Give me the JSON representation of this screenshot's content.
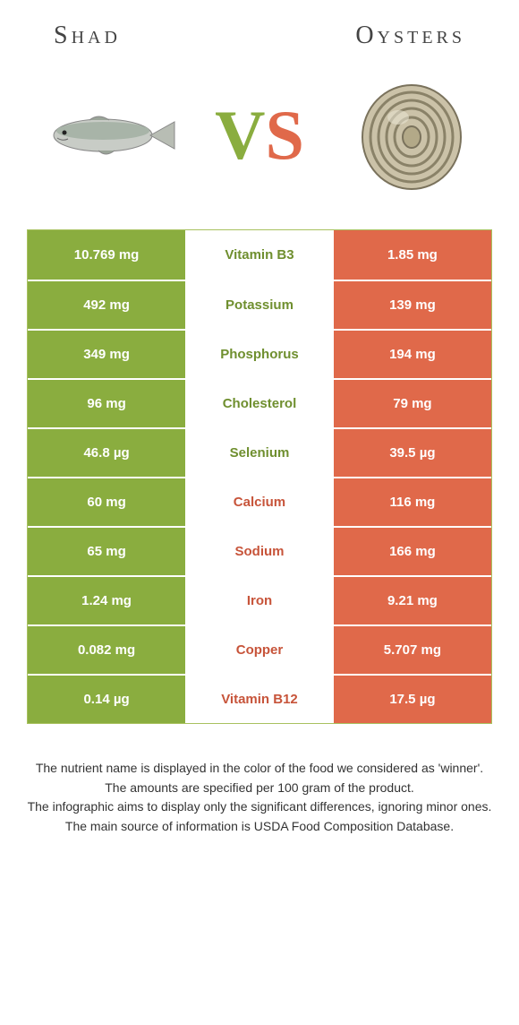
{
  "header": {
    "left_title": "Shad",
    "right_title": "Oysters"
  },
  "vs": {
    "v": "V",
    "s": "S"
  },
  "colors": {
    "left": "#8aad3f",
    "right": "#e0694a",
    "left_text": "#6f8f2f",
    "right_text": "#c7543a"
  },
  "rows": [
    {
      "left": "10.769 mg",
      "label": "Vitamin B3",
      "right": "1.85 mg",
      "winner": "left"
    },
    {
      "left": "492 mg",
      "label": "Potassium",
      "right": "139 mg",
      "winner": "left"
    },
    {
      "left": "349 mg",
      "label": "Phosphorus",
      "right": "194 mg",
      "winner": "left"
    },
    {
      "left": "96 mg",
      "label": "Cholesterol",
      "right": "79 mg",
      "winner": "left"
    },
    {
      "left": "46.8 µg",
      "label": "Selenium",
      "right": "39.5 µg",
      "winner": "left"
    },
    {
      "left": "60 mg",
      "label": "Calcium",
      "right": "116 mg",
      "winner": "right"
    },
    {
      "left": "65 mg",
      "label": "Sodium",
      "right": "166 mg",
      "winner": "right"
    },
    {
      "left": "1.24 mg",
      "label": "Iron",
      "right": "9.21 mg",
      "winner": "right"
    },
    {
      "left": "0.082 mg",
      "label": "Copper",
      "right": "5.707 mg",
      "winner": "right"
    },
    {
      "left": "0.14 µg",
      "label": "Vitamin B12",
      "right": "17.5 µg",
      "winner": "right"
    }
  ],
  "footer": {
    "line1": "The nutrient name is displayed in the color of the food we considered as 'winner'.",
    "line2": "The amounts are specified per 100 gram of the product.",
    "line3": "The infographic aims to display only the significant differences, ignoring minor ones.",
    "line4": "The main source of information is USDA Food Composition Database."
  }
}
